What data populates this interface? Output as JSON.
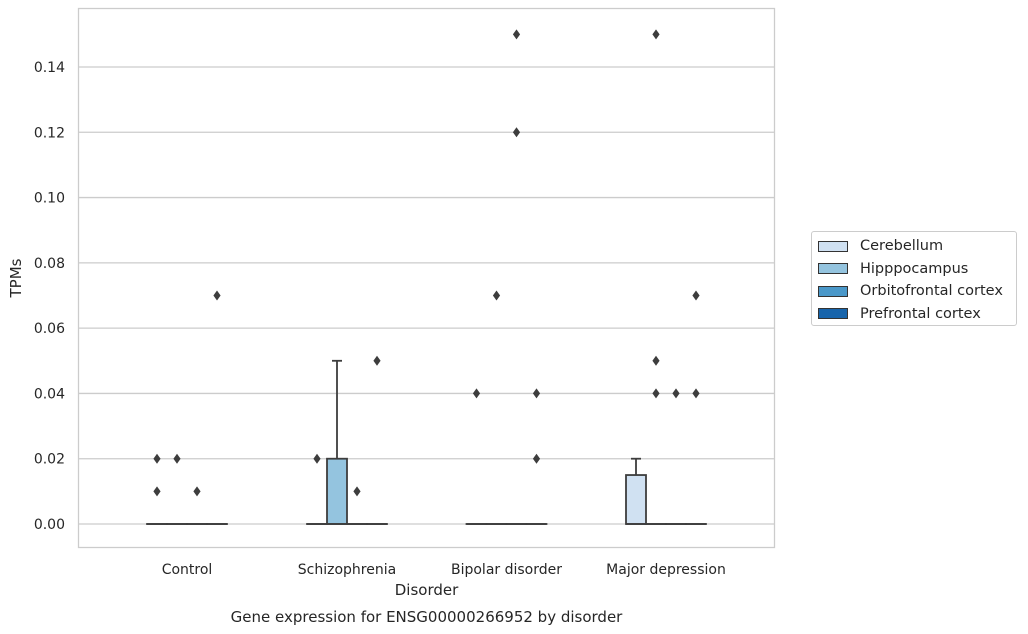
{
  "chart_data": {
    "type": "box",
    "title": "Gene expression for ENSG00000266952 by disorder",
    "xlabel": "Disorder",
    "ylabel": "TPMs",
    "categories": [
      "Control",
      "Schizophrenia",
      "Bipolar disorder",
      "Major depression"
    ],
    "ylim": [
      -0.0075,
      0.1575
    ],
    "yticks": [
      0.0,
      0.02,
      0.04,
      0.06,
      0.08,
      0.1,
      0.12,
      0.14
    ],
    "ytick_labels": [
      "0.00",
      "0.02",
      "0.04",
      "0.06",
      "0.08",
      "0.10",
      "0.12",
      "0.14"
    ],
    "grid": true,
    "legend_position": "right",
    "series": [
      {
        "name": "Cerebellum",
        "color": "#d0e1f2",
        "boxes": [
          {
            "q1": 0,
            "median": 0,
            "q3": 0,
            "whisker_low": 0,
            "whisker_high": 0,
            "outliers": [
              0.01,
              0.02
            ]
          },
          {
            "q1": 0,
            "median": 0,
            "q3": 0,
            "whisker_low": 0,
            "whisker_high": 0,
            "outliers": [
              0.02
            ]
          },
          {
            "q1": 0,
            "median": 0,
            "q3": 0,
            "whisker_low": 0,
            "whisker_high": 0,
            "outliers": [
              0.04
            ]
          },
          {
            "q1": 0,
            "median": 0,
            "q3": 0.015,
            "whisker_low": 0,
            "whisker_high": 0.02,
            "outliers": []
          }
        ]
      },
      {
        "name": "Hipppocampus",
        "color": "#94c4df",
        "boxes": [
          {
            "q1": 0,
            "median": 0,
            "q3": 0,
            "whisker_low": 0,
            "whisker_high": 0,
            "outliers": [
              0.02
            ]
          },
          {
            "q1": 0,
            "median": 0,
            "q3": 0.02,
            "whisker_low": 0,
            "whisker_high": 0.05,
            "outliers": []
          },
          {
            "q1": 0,
            "median": 0,
            "q3": 0,
            "whisker_low": 0,
            "whisker_high": 0,
            "outliers": [
              0.07
            ]
          },
          {
            "q1": 0,
            "median": 0,
            "q3": 0,
            "whisker_low": 0,
            "whisker_high": 0,
            "outliers": [
              0.04,
              0.05,
              0.15
            ]
          }
        ]
      },
      {
        "name": "Orbitofrontal cortex",
        "color": "#4a98c9",
        "boxes": [
          {
            "q1": 0,
            "median": 0,
            "q3": 0,
            "whisker_low": 0,
            "whisker_high": 0,
            "outliers": [
              0.01
            ]
          },
          {
            "q1": 0,
            "median": 0,
            "q3": 0,
            "whisker_low": 0,
            "whisker_high": 0,
            "outliers": [
              0.01
            ]
          },
          {
            "q1": 0,
            "median": 0,
            "q3": 0,
            "whisker_low": 0,
            "whisker_high": 0,
            "outliers": [
              0.12,
              0.15
            ]
          },
          {
            "q1": 0,
            "median": 0,
            "q3": 0,
            "whisker_low": 0,
            "whisker_high": 0,
            "outliers": [
              0.04
            ]
          }
        ]
      },
      {
        "name": "Prefrontal cortex",
        "color": "#1764ab",
        "boxes": [
          {
            "q1": 0,
            "median": 0,
            "q3": 0,
            "whisker_low": 0,
            "whisker_high": 0,
            "outliers": [
              0.07
            ]
          },
          {
            "q1": 0,
            "median": 0,
            "q3": 0,
            "whisker_low": 0,
            "whisker_high": 0,
            "outliers": [
              0.05
            ]
          },
          {
            "q1": 0,
            "median": 0,
            "q3": 0,
            "whisker_low": 0,
            "whisker_high": 0,
            "outliers": [
              0.02,
              0.04
            ]
          },
          {
            "q1": 0,
            "median": 0,
            "q3": 0,
            "whisker_low": 0,
            "whisker_high": 0,
            "outliers": [
              0.04,
              0.07
            ]
          }
        ]
      }
    ]
  }
}
